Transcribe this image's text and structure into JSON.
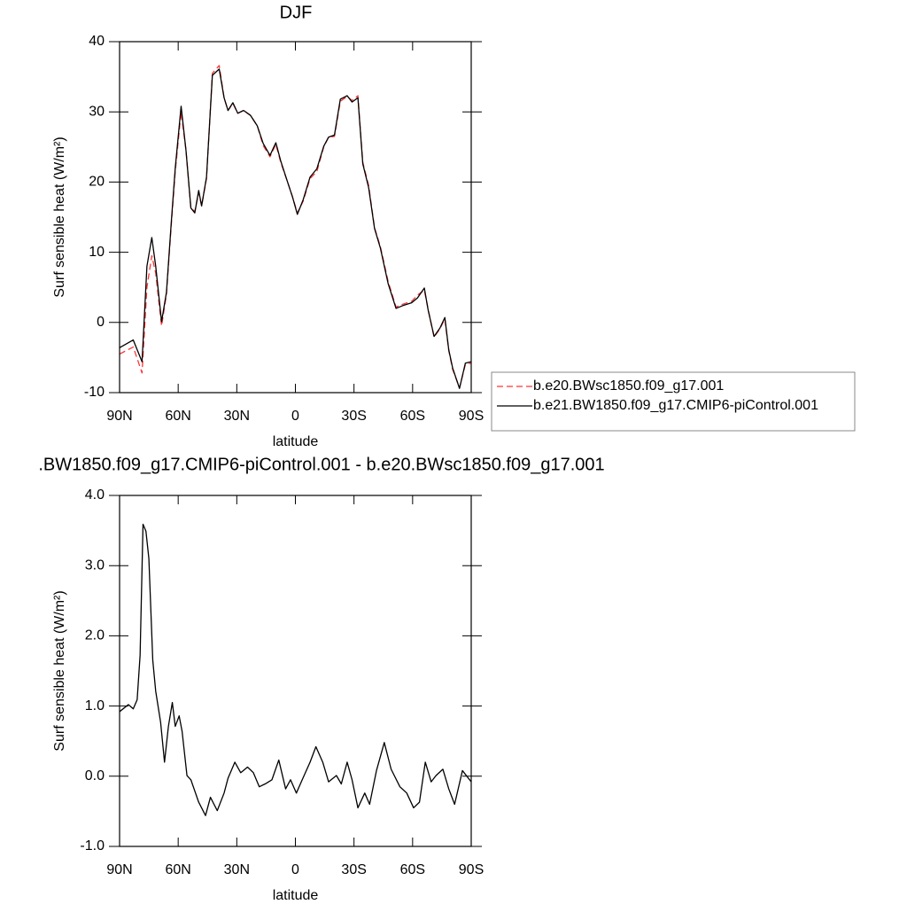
{
  "chart_data": [
    {
      "type": "line",
      "title": "DJF",
      "xlabel": "latitude",
      "ylabel": "Surf sensible heat (W/m²)",
      "x": [
        90,
        83,
        78.5,
        76,
        73.5,
        71.5,
        68.5,
        66,
        63.5,
        61.5,
        58.5,
        56,
        53.5,
        51.5,
        49.5,
        48,
        45.5,
        42.5,
        39,
        36.5,
        34.5,
        32,
        29.5,
        26.5,
        23,
        19.5,
        16.5,
        13,
        10,
        7.5,
        4,
        1.5,
        -1,
        -4,
        -7.5,
        -11,
        -14.5,
        -17,
        -20,
        -23,
        -26.5,
        -29,
        -32,
        -34.5,
        -37.5,
        -40.5,
        -43.5,
        -47.5,
        -51.5,
        -55,
        -59.5,
        -62.5,
        -66,
        -68,
        -71,
        -74,
        -76.5,
        -78.5,
        -80.5,
        -84,
        -87,
        -90
      ],
      "series": [
        {
          "name": "b.e20.BWsc1850.f09_g17.001",
          "color": "#ff3333",
          "dash": "dashed",
          "values": [
            -4.5,
            -3.5,
            -7.2,
            5,
            9.5,
            7,
            -0.5,
            4,
            14,
            21.5,
            30,
            24.5,
            16.3,
            15.8,
            18.5,
            16.6,
            20.5,
            35.5,
            36.6,
            32,
            30.2,
            31.2,
            29.8,
            30.2,
            29.5,
            28,
            25.2,
            23.6,
            25.4,
            22.8,
            20,
            17.9,
            15.6,
            17.3,
            20.5,
            21.5,
            25,
            26.4,
            26.5,
            31.5,
            32.2,
            31.6,
            32.3,
            22.8,
            19.5,
            13.5,
            10.8,
            5.8,
            2.2,
            2.6,
            3,
            3.9,
            4.6,
            1.8,
            -2.1,
            -0.9,
            0.5,
            -4,
            -6.7,
            -9.3,
            -6,
            -5.8
          ]
        },
        {
          "name": "b.e21.BW1850.f09_g17.CMIP6-piControl.001",
          "color": "#000000",
          "dash": "solid",
          "values": [
            -3.6,
            -2.5,
            -5.6,
            8,
            12.1,
            8,
            0.1,
            4.3,
            14.4,
            22,
            30.8,
            24.5,
            16.3,
            15.6,
            18.8,
            16.6,
            20.7,
            35.2,
            36.1,
            32,
            30.2,
            31.3,
            29.8,
            30.2,
            29.5,
            28,
            25.5,
            23.8,
            25.6,
            23,
            20,
            17.9,
            15.4,
            17.5,
            20.7,
            21.9,
            25.1,
            26.4,
            26.7,
            31.8,
            32.3,
            31.4,
            32,
            22.6,
            19.2,
            13.4,
            10.6,
            5.5,
            2,
            2.4,
            2.8,
            3.5,
            4.9,
            1.7,
            -2,
            -0.8,
            0.7,
            -3.9,
            -6.5,
            -9.4,
            -5.8,
            -5.6
          ]
        }
      ],
      "xlim": [
        90,
        -90
      ],
      "xticks": [
        {
          "value": 90,
          "label": "90N"
        },
        {
          "value": 60,
          "label": "60N"
        },
        {
          "value": 30,
          "label": "30N"
        },
        0,
        {
          "value": -30,
          "label": "30S"
        },
        {
          "value": -60,
          "label": "60S"
        },
        {
          "value": -90,
          "label": "90S"
        }
      ],
      "ylim": [
        -10,
        40
      ],
      "yticks": [
        -10,
        0,
        10,
        20,
        30,
        40
      ],
      "legend": "right"
    },
    {
      "type": "line",
      "title": ".BW1850.f09_g17.CMIP6-piControl.001 - b.e20.BWsc1850.f09_g17.001",
      "xlabel": "latitude",
      "ylabel": "Surf sensible heat (W/m²)",
      "x": [
        90,
        85.5,
        83,
        81,
        79.5,
        78,
        76.5,
        75,
        73,
        71.5,
        69,
        67,
        65,
        63,
        61.5,
        59.5,
        58,
        55.5,
        53.5,
        49.5,
        46,
        43.5,
        40,
        36.5,
        34.5,
        31,
        28,
        24.5,
        21.5,
        18.5,
        15.5,
        12,
        8.5,
        5,
        2.5,
        -0.5,
        -3.5,
        -7.5,
        -10.5,
        -14,
        -17,
        -21,
        -23.5,
        -26.5,
        -29,
        -32,
        -35.5,
        -38,
        -41.5,
        -45.5,
        -49,
        -53.5,
        -57,
        -60.5,
        -63.5,
        -66.5,
        -69.5,
        -72,
        -75.5,
        -78.5,
        -81.5,
        -85.5,
        -90
      ],
      "series": [
        {
          "color": "#000000",
          "dash": "solid",
          "values": [
            0.92,
            1.02,
            0.96,
            1.09,
            1.72,
            3.59,
            3.49,
            3.1,
            1.65,
            1.21,
            0.77,
            0.2,
            0.71,
            1.05,
            0.71,
            0.86,
            0.64,
            0.01,
            -0.05,
            -0.37,
            -0.56,
            -0.3,
            -0.49,
            -0.24,
            -0.03,
            0.2,
            0.05,
            0.13,
            0.05,
            -0.15,
            -0.11,
            -0.05,
            0.23,
            -0.18,
            -0.05,
            -0.24,
            -0.05,
            0.2,
            0.42,
            0.2,
            -0.08,
            0.01,
            -0.11,
            0.2,
            -0.05,
            -0.45,
            -0.24,
            -0.4,
            0.08,
            0.48,
            0.1,
            -0.15,
            -0.24,
            -0.45,
            -0.37,
            0.2,
            -0.08,
            0.01,
            0.1,
            -0.18,
            -0.4,
            0.08,
            -0.08
          ]
        }
      ],
      "xlim": [
        90,
        -90
      ],
      "xticks": [
        {
          "value": 90,
          "label": "90N"
        },
        {
          "value": 60,
          "label": "60N"
        },
        {
          "value": 30,
          "label": "30N"
        },
        0,
        {
          "value": -30,
          "label": "30S"
        },
        {
          "value": -60,
          "label": "60S"
        },
        {
          "value": -90,
          "label": "90S"
        }
      ],
      "ylim": [
        -1,
        4
      ],
      "yticks": [
        {
          "value": -1,
          "label": "-1.0"
        },
        {
          "value": 0,
          "label": "0.0"
        },
        {
          "value": 1,
          "label": "1.0"
        },
        {
          "value": 2,
          "label": "2.0"
        },
        {
          "value": 3,
          "label": "3.0"
        },
        {
          "value": 4,
          "label": "4.0"
        }
      ]
    }
  ]
}
